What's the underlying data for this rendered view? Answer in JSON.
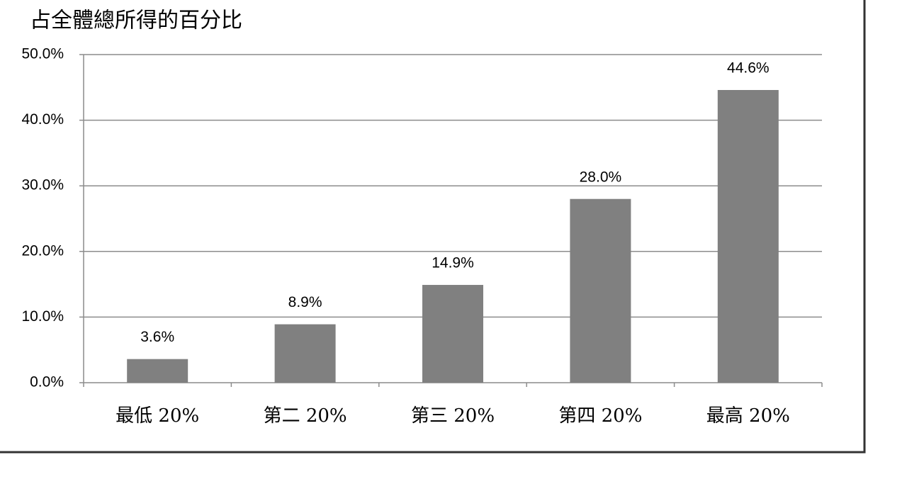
{
  "chart_data": {
    "type": "bar",
    "title": "占全體總所得的百分比",
    "categories": [
      "最低 20%",
      "第二 20%",
      "第三 20%",
      "第四 20%",
      "最高 20%"
    ],
    "values": [
      3.6,
      8.9,
      14.9,
      28.0,
      44.6
    ],
    "value_labels": [
      "3.6%",
      "8.9%",
      "14.9%",
      "28.0%",
      "44.6%"
    ],
    "color": "#808080",
    "ylim": [
      0,
      50
    ],
    "yticks": [
      {
        "value": 0,
        "label": "0.0%"
      },
      {
        "value": 10,
        "label": "10.0%"
      },
      {
        "value": 20,
        "label": "20.0%"
      },
      {
        "value": 30,
        "label": "30.0%"
      },
      {
        "value": 40,
        "label": "40.0%"
      },
      {
        "value": 50,
        "label": "50.0%"
      }
    ],
    "grid": true
  }
}
